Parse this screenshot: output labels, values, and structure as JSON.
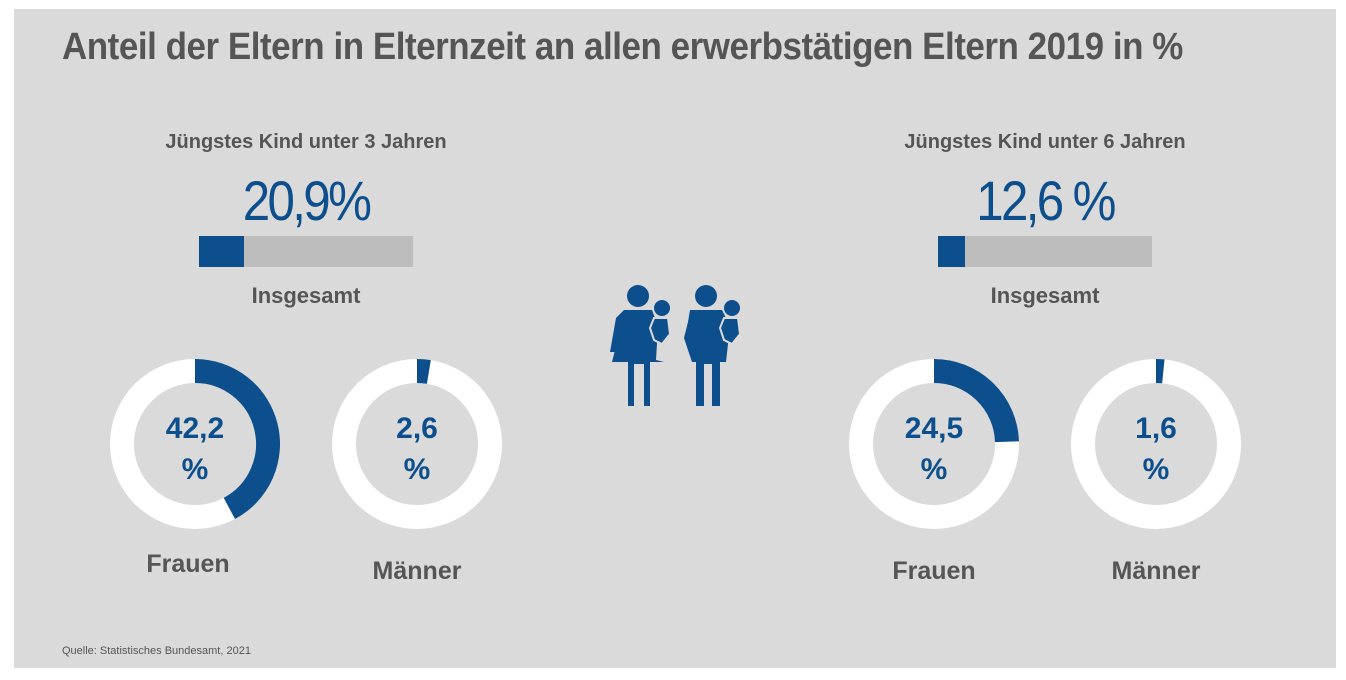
{
  "title": "Anteil der Eltern in Elternzeit an allen erwerbstätigen Eltern 2019 in %",
  "source": "Quelle: Statistisches Bundesamt, 2021",
  "icon": "parents-with-babies-icon",
  "colors": {
    "accent": "#0d4e8c",
    "track": "#bdbdbd",
    "ring": "#ffffff",
    "background": "#dadada",
    "text": "#555555"
  },
  "groups": [
    {
      "subtitle": "Jüngstes Kind unter 3 Jahren",
      "total_display": "20,9%",
      "total_value": 20.9,
      "total_label": "Insgesamt",
      "women": {
        "value_text": "42,2",
        "unit": "%",
        "value": 42.2,
        "label": "Frauen"
      },
      "men": {
        "value_text": "2,6",
        "unit": "%",
        "value": 2.6,
        "label": "Männer"
      }
    },
    {
      "subtitle": "Jüngstes Kind unter 6 Jahren",
      "total_display": "12,6 %",
      "total_value": 12.6,
      "total_label": "Insgesamt",
      "women": {
        "value_text": "24,5",
        "unit": "%",
        "value": 24.5,
        "label": "Frauen"
      },
      "men": {
        "value_text": "1,6",
        "unit": "%",
        "value": 1.6,
        "label": "Männer"
      }
    }
  ],
  "chart_data": {
    "type": "bar",
    "title": "Anteil der Eltern in Elternzeit an allen erwerbstätigen Eltern 2019 in %",
    "categories": [
      "Insgesamt",
      "Frauen",
      "Männer"
    ],
    "series": [
      {
        "name": "Jüngstes Kind unter 3 Jahren",
        "values": [
          20.9,
          42.2,
          2.6
        ]
      },
      {
        "name": "Jüngstes Kind unter 6 Jahren",
        "values": [
          12.6,
          24.5,
          1.6
        ]
      }
    ],
    "ylim": [
      0,
      100
    ],
    "xlabel": "",
    "ylabel": "%"
  }
}
